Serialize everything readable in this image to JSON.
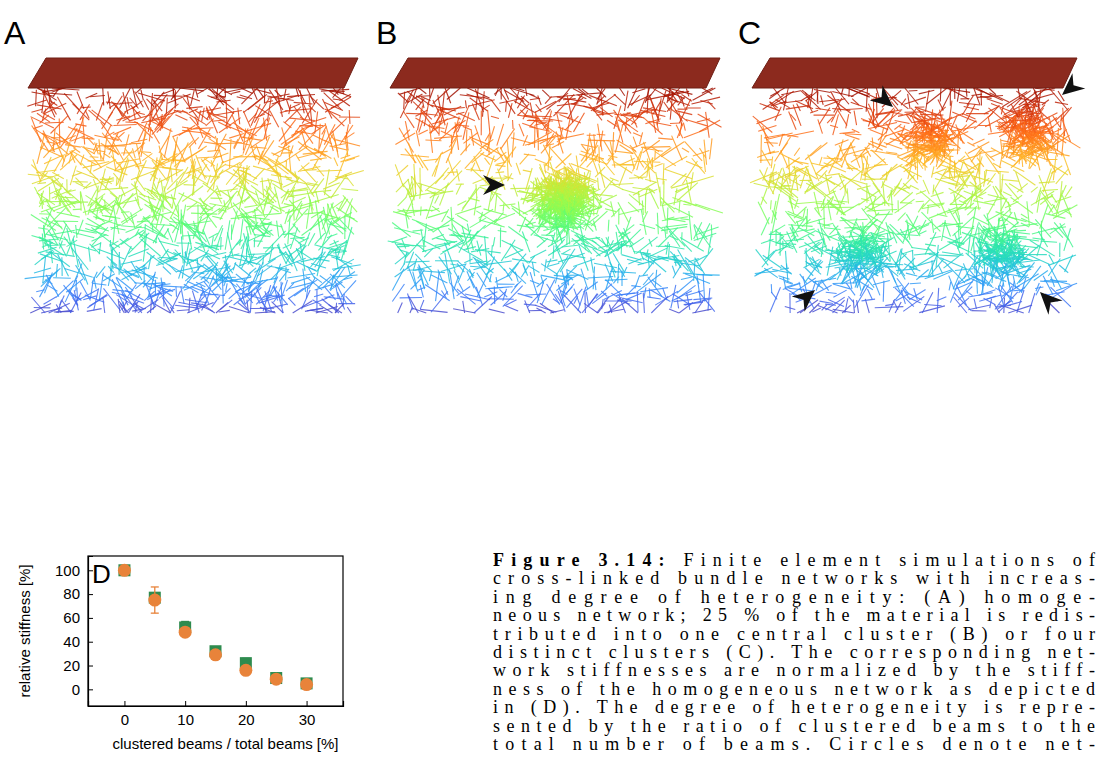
{
  "chart_data": {
    "type": "scatter",
    "panels": [
      "A",
      "B",
      "C",
      "D"
    ],
    "x_label": "clustered beams / total beams [%]",
    "y_label": "relative stiffness [%]",
    "x": [
      0,
      5,
      10,
      15,
      20,
      25,
      30
    ],
    "series": [
      {
        "color": "#2e8b4e",
        "marker": "square",
        "values": [
          100,
          77,
          52,
          32,
          22,
          9.5,
          5
        ],
        "errors": [
          0,
          3,
          5,
          2,
          4,
          1,
          1
        ]
      },
      {
        "color": "#e8833a",
        "marker": "circle",
        "values": [
          100,
          75,
          48,
          29,
          16,
          8.5,
          4
        ],
        "errors": [
          0,
          11,
          3,
          3,
          1,
          0.5,
          0.5
        ]
      }
    ],
    "xlim": [
      -6,
      36
    ],
    "xticks": [
      0,
      10,
      20,
      30
    ],
    "ylim": [
      -14,
      112
    ],
    "yticks": [
      0,
      20,
      40,
      60,
      80,
      100
    ],
    "grid": false
  },
  "caption": {
    "label": "Figure 3.14:",
    "lines": [
      "Finite element simulations of",
      "cross-linked bundle networks with increas-",
      "ing degree of heterogeneity: (A) homoge-",
      "neous network; 25 % of the material is redis-",
      "tributed into one central cluster (B) or four",
      "distinct clusters (C). The corresponding net-",
      "work stiffnesses are normalized by the stiff-",
      "ness of the homogeneous network as depicted",
      "in (D). The degree of heterogeneity is repre-",
      "sented by the ratio of clustered beams to the",
      "total number of beams. Circles denote net-"
    ]
  }
}
